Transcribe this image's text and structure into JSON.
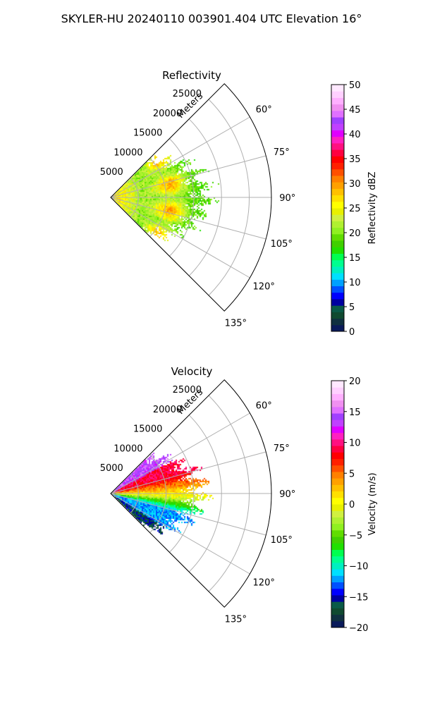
{
  "figure": {
    "title": "SKYLER-HU  20240110  003901.404 UTC Elevation 16°"
  },
  "chart_data": [
    {
      "type": "heatmap",
      "title": "Reflectivity",
      "rlabel": "Meters",
      "r_ticks": [
        5000,
        10000,
        15000,
        20000,
        25000
      ],
      "r_tick_labels": [
        "5000",
        "10000",
        "15000",
        "20000",
        "25000"
      ],
      "theta_ticks": [
        60,
        75,
        90,
        105,
        120,
        135
      ],
      "theta_tick_labels": [
        "60°",
        "75°",
        "90°",
        "105°",
        "120°",
        "135°"
      ],
      "theta_range": [
        45,
        135
      ],
      "r_range": [
        0,
        29000
      ],
      "grid": true,
      "colorbar": {
        "label": "Reflectivity dBZ",
        "range": [
          0,
          50
        ],
        "ticks": [
          0,
          5,
          10,
          15,
          20,
          25,
          30,
          35,
          40,
          45,
          50
        ],
        "tick_labels": [
          "0",
          "5",
          "10",
          "15",
          "20",
          "25",
          "30",
          "35",
          "40",
          "45",
          "50"
        ],
        "colors": [
          "#0a1a5a",
          "#103040",
          "#104a30",
          "#0a5a48",
          "#0000a0",
          "#0000ff",
          "#0050ff",
          "#00a0ff",
          "#00e0ff",
          "#00f0c0",
          "#00ff90",
          "#00ff50",
          "#20e000",
          "#40d000",
          "#60dd00",
          "#90f020",
          "#b0f030",
          "#d0f040",
          "#e8f000",
          "#ffff00",
          "#ffe000",
          "#ffc000",
          "#ffa000",
          "#ff8000",
          "#ff5000",
          "#ff2000",
          "#ff0000",
          "#ff0040",
          "#ff1080",
          "#ff20c0",
          "#e000ff",
          "#c040ff",
          "#a040ff",
          "#e070ff",
          "#f090f0",
          "#ffb0ff",
          "#ffd0ff",
          "#ffe8ff"
        ]
      },
      "field_summary": {
        "sector_deg": [
          45,
          135
        ],
        "echo_max_range_m": 19000,
        "core_range_m": [
          8000,
          14000
        ],
        "core_value_dbz": 37,
        "near_value_dbz": 27,
        "edge_value_dbz": 17
      }
    },
    {
      "type": "heatmap",
      "title": "Velocity",
      "rlabel": "Meters",
      "r_ticks": [
        5000,
        10000,
        15000,
        20000,
        25000
      ],
      "r_tick_labels": [
        "5000",
        "10000",
        "15000",
        "20000",
        "25000"
      ],
      "theta_ticks": [
        60,
        75,
        90,
        105,
        120,
        135
      ],
      "theta_tick_labels": [
        "60°",
        "75°",
        "90°",
        "105°",
        "120°",
        "135°"
      ],
      "theta_range": [
        45,
        135
      ],
      "r_range": [
        0,
        29000
      ],
      "grid": true,
      "colorbar": {
        "label": "Velocity (m/s)",
        "range": [
          -20,
          20
        ],
        "ticks": [
          -20,
          -15,
          -10,
          -5,
          0,
          5,
          10,
          15,
          20
        ],
        "tick_labels": [
          "−20",
          "−15",
          "−10",
          "−5",
          "0",
          "5",
          "10",
          "15",
          "20"
        ],
        "colors": [
          "#0a1a5a",
          "#103040",
          "#104a30",
          "#0a5a48",
          "#0000a0",
          "#0000ff",
          "#0050ff",
          "#00a0ff",
          "#00e0ff",
          "#00f0c0",
          "#00ff90",
          "#00ff50",
          "#20e000",
          "#40d000",
          "#60dd00",
          "#90f020",
          "#b0f030",
          "#d0f040",
          "#e8f000",
          "#ffff00",
          "#ffe000",
          "#ffc000",
          "#ffa000",
          "#ff8000",
          "#ff5000",
          "#ff2000",
          "#ff0000",
          "#ff0040",
          "#ff1080",
          "#ff20c0",
          "#e000ff",
          "#c040ff",
          "#a040ff",
          "#e070ff",
          "#f090f0",
          "#ffb0ff",
          "#ffd0ff",
          "#ffe8ff"
        ]
      },
      "field_summary": {
        "sector_deg": [
          45,
          135
        ],
        "echo_max_range_m": 18000,
        "north_side_value_ms": 9,
        "south_side_value_ms": -12,
        "zero_line_deg": 92
      }
    }
  ]
}
